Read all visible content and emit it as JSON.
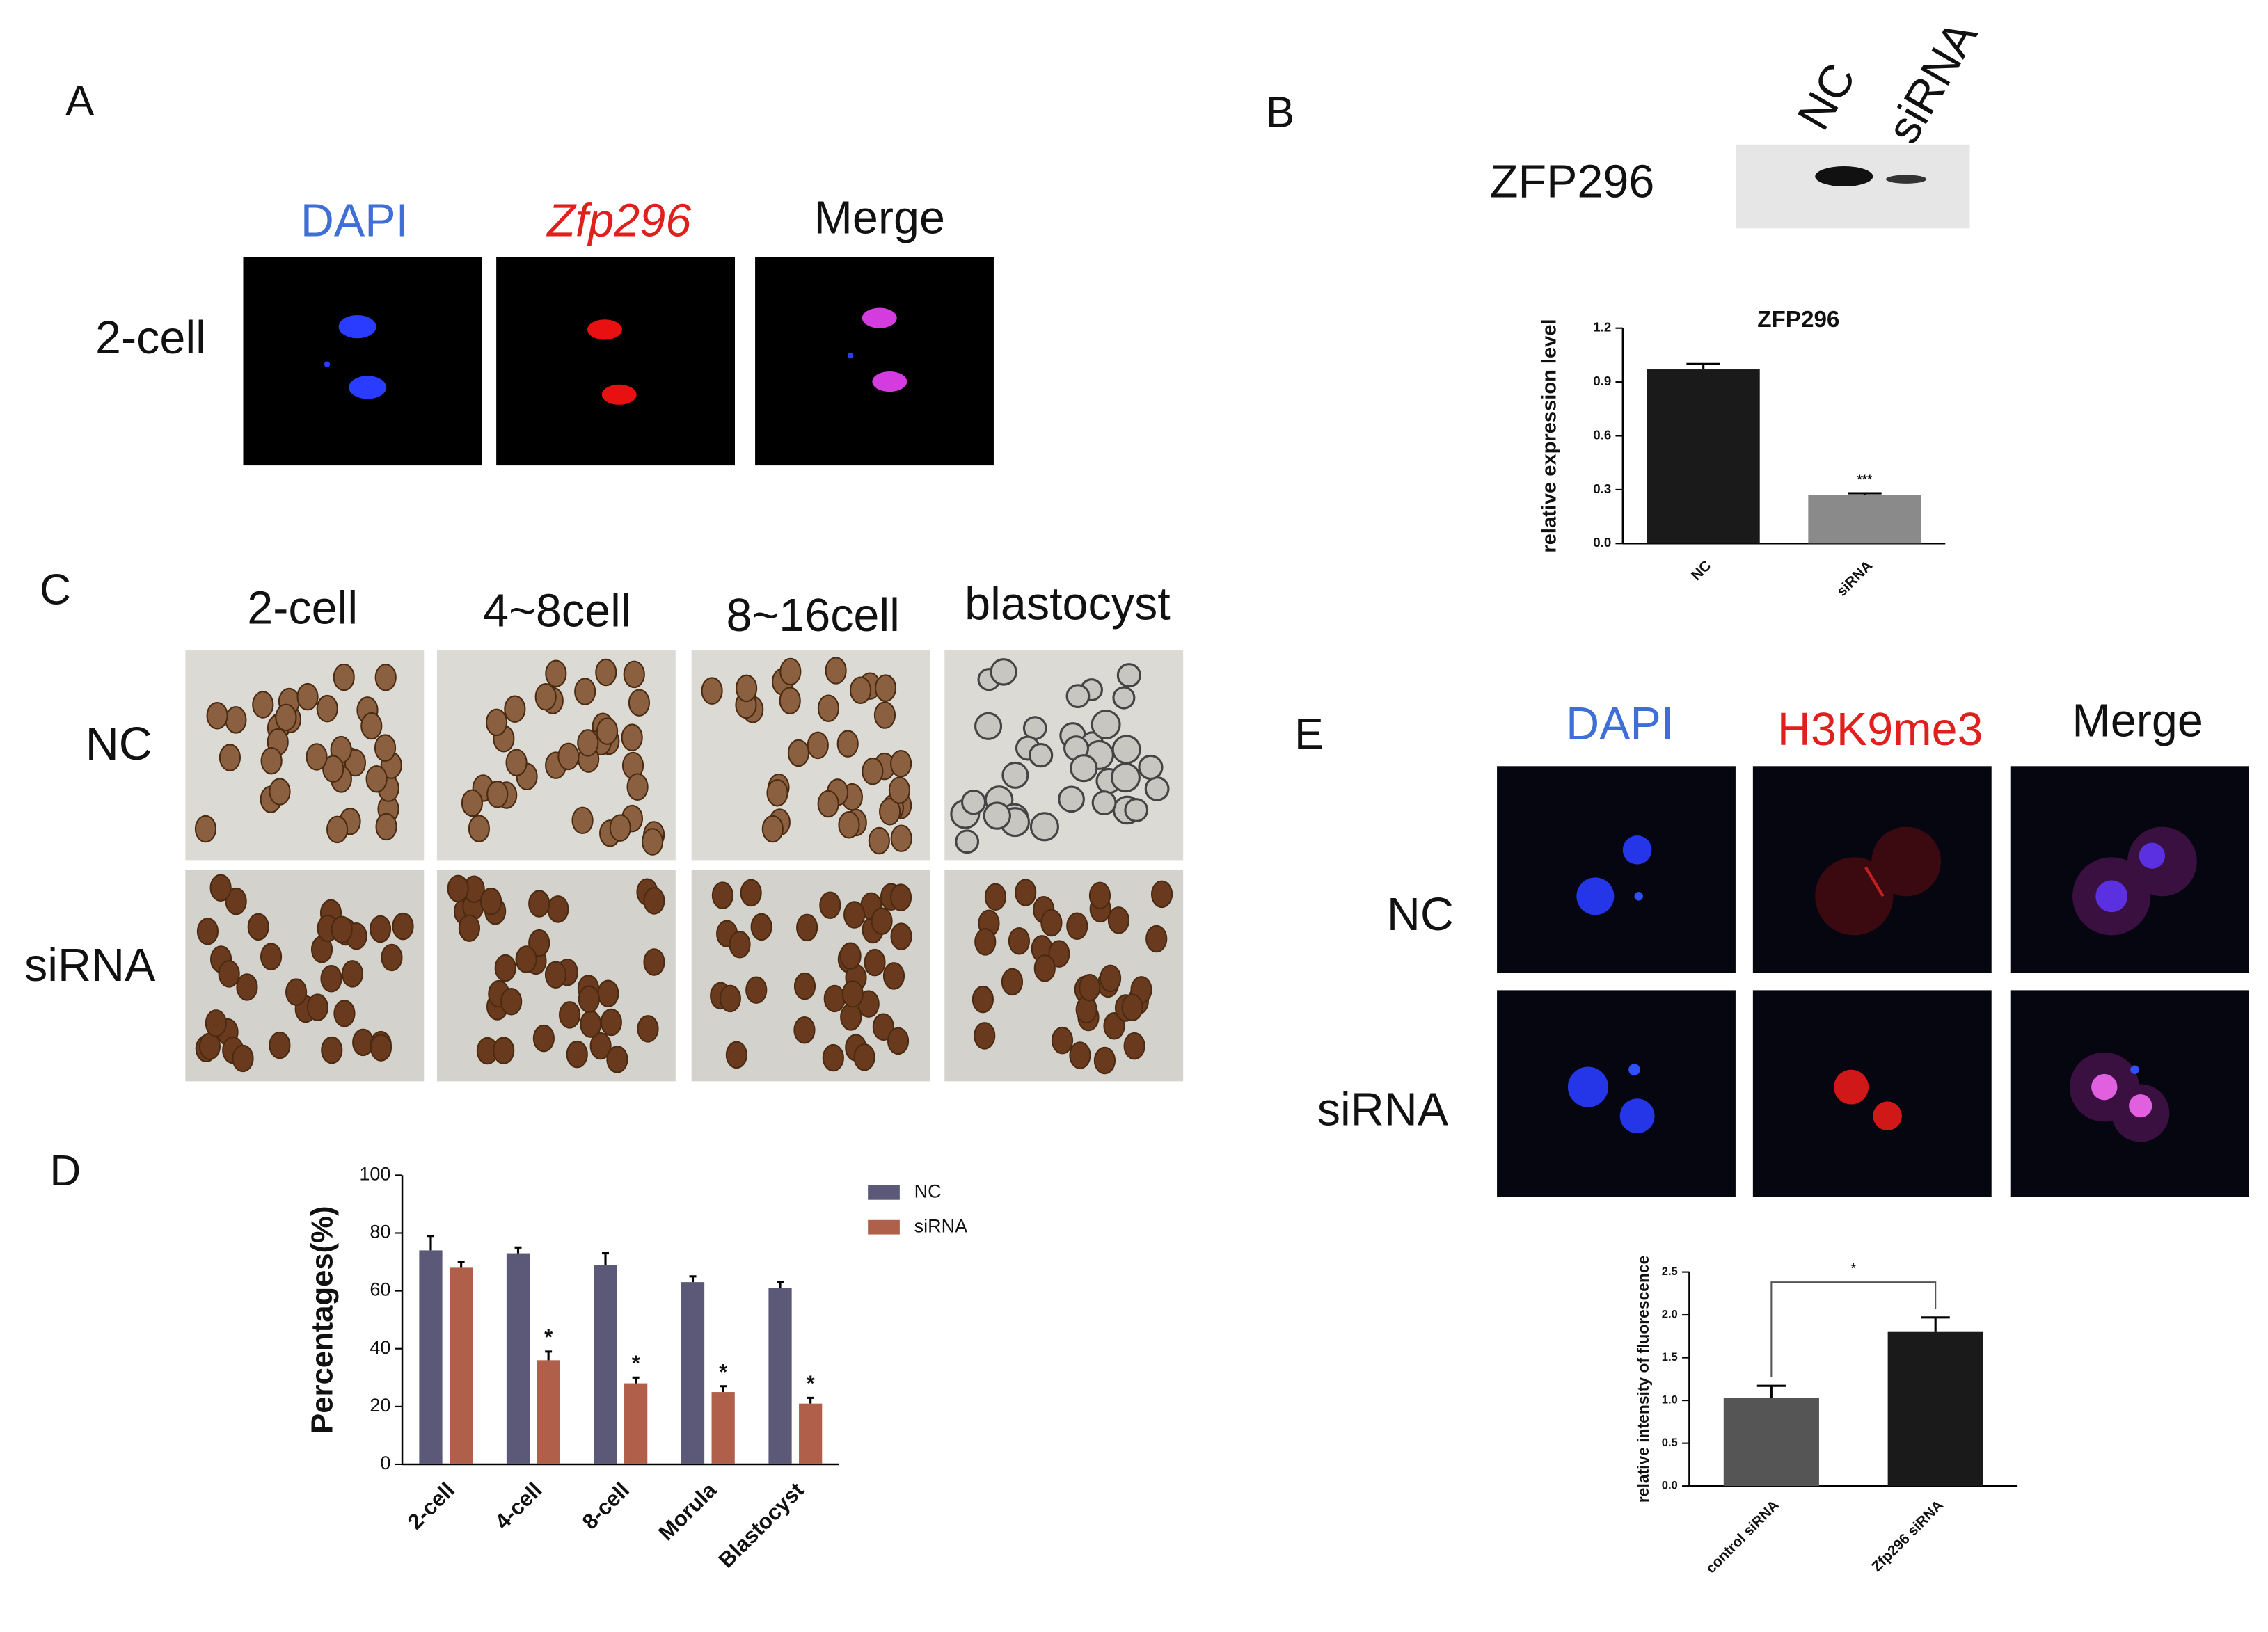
{
  "panels": {
    "A": {
      "label": "A",
      "columns": [
        "DAPI",
        "Zfp296",
        "Merge"
      ],
      "rows": [
        "2-cell"
      ]
    },
    "B": {
      "label": "B",
      "lanes": [
        "NC",
        "siRNA"
      ],
      "protein": "ZFP296"
    },
    "C": {
      "label": "C",
      "columns": [
        "2-cell",
        "4~8cell",
        "8~16cell",
        "blastocyst"
      ],
      "rows": [
        "NC",
        "siRNA"
      ]
    },
    "D": {
      "label": "D"
    },
    "E": {
      "label": "E",
      "columns": [
        "DAPI",
        "H3K9me3",
        "Merge"
      ],
      "rows": [
        "NC",
        "siRNA"
      ]
    }
  },
  "chart_data": [
    {
      "type": "bar",
      "title": "ZFP296",
      "y_label": "relative expression level",
      "categories": [
        "NC",
        "siRNA"
      ],
      "values": [
        0.97,
        0.27
      ],
      "errors": [
        0.03,
        0.01
      ],
      "colors": [
        "#1a1a1a",
        "#8a8a8a"
      ],
      "significance": [
        null,
        "***"
      ],
      "ylim": [
        0,
        1.2
      ],
      "yticks": [
        {
          "value": 0,
          "label": "0.0"
        },
        0.3,
        0.6,
        0.9,
        1.2
      ]
    },
    {
      "type": "bar",
      "y_label": "Percentages(%)",
      "categories": [
        "2-cell",
        "4-cell",
        "8-cell",
        "Morula",
        "Blastocyst"
      ],
      "series": [
        {
          "name": "NC",
          "color": "#5b5878",
          "values": [
            74,
            73,
            69,
            63,
            61
          ],
          "errors": [
            5,
            2,
            4,
            2,
            2
          ]
        },
        {
          "name": "siRNA",
          "color": "#b0604a",
          "values": [
            68,
            36,
            28,
            25,
            21
          ],
          "errors": [
            2,
            3,
            2,
            2,
            2
          ],
          "significance": [
            null,
            "*",
            "*",
            "*",
            "*"
          ]
        }
      ],
      "legend": "top-right",
      "ylim": [
        0,
        100
      ],
      "yticks": [
        0,
        20,
        40,
        60,
        80,
        100
      ]
    },
    {
      "type": "bar",
      "y_label": "relative intensity of fluorescence",
      "categories": [
        "control siRNA",
        "Zfp296 siRNA"
      ],
      "values": [
        1.03,
        1.8
      ],
      "errors": [
        0.14,
        0.17
      ],
      "colors": [
        "#555555",
        "#1a1a1a"
      ],
      "annotation": "*",
      "ylim": [
        0,
        2.5
      ],
      "yticks": [
        {
          "value": 0,
          "label": "0.0"
        },
        0.5,
        {
          "value": 1,
          "label": "1.0"
        },
        1.5,
        {
          "value": 2,
          "label": "2.0"
        },
        2.5
      ]
    }
  ]
}
